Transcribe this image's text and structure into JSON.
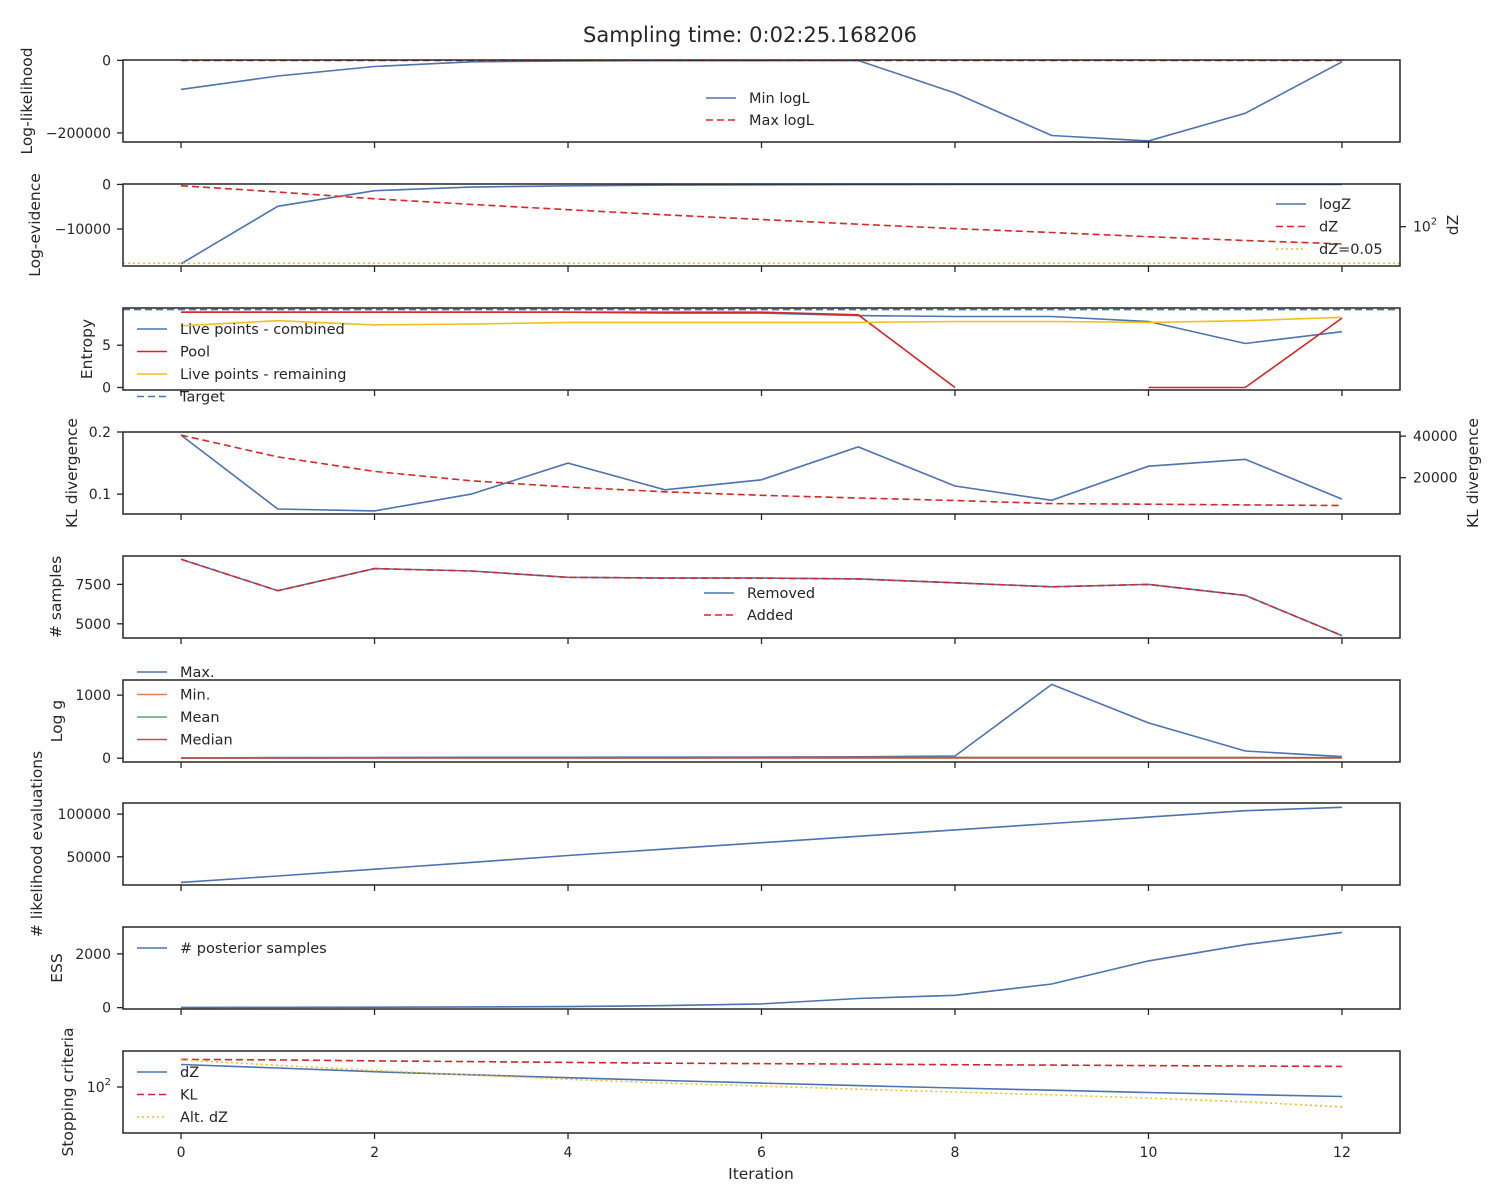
{
  "figure": {
    "title": "Sampling time: 0:02:25.168206",
    "xlabel": "Iteration",
    "x_ticks": [
      0,
      2,
      4,
      6,
      8,
      10,
      12
    ],
    "x_range": [
      -0.6,
      12.6
    ]
  },
  "colors": {
    "blue": "#4c72b0",
    "red": "#d62728",
    "yellow": "#f2c01b",
    "orange": "#dd8452",
    "green": "#55a868",
    "crimson": "#c44e52",
    "axis": "#262626"
  },
  "chart_data": [
    {
      "type": "line",
      "ylabel": "Log-likelihood",
      "ylim": [
        -225000,
        1000
      ],
      "yticks": [
        0,
        -200000
      ],
      "ytick_labels": [
        "0",
        "−200000"
      ],
      "legend": "center",
      "series": [
        {
          "name": "Min logL",
          "color": "#4c72b0",
          "dash": "solid",
          "x": [
            0,
            1,
            2,
            3,
            4,
            5,
            6,
            7,
            8,
            9,
            10,
            11,
            12
          ],
          "values": [
            -80000,
            -43000,
            -17000,
            -4000,
            -1500,
            -1000,
            -800,
            -500,
            -90000,
            -207000,
            -222000,
            -146000,
            -4000
          ]
        },
        {
          "name": "Max logL",
          "color": "#d62728",
          "dash": "dashed",
          "x": [
            0,
            1,
            2,
            3,
            4,
            5,
            6,
            7,
            8,
            9,
            10,
            11,
            12
          ],
          "values": [
            0,
            0,
            0,
            0,
            0,
            0,
            0,
            0,
            0,
            0,
            0,
            0,
            0
          ]
        }
      ]
    },
    {
      "type": "line",
      "ylabel": "Log-evidence",
      "ylim": [
        -18300,
        100
      ],
      "yticks": [
        0,
        -10000
      ],
      "ytick_labels": [
        "0",
        "−10000"
      ],
      "ylabel_right": "dZ",
      "y2scale": "log",
      "y2lim": [
        11,
        1100
      ],
      "y2ticks": [
        100
      ],
      "y2tick_labels": [
        "10^2"
      ],
      "legend": "right",
      "series": [
        {
          "name": "logZ",
          "color": "#4c72b0",
          "dash": "solid",
          "axis": "left",
          "x": [
            0,
            1,
            2,
            3,
            4,
            5,
            6,
            7,
            8,
            9,
            10,
            11,
            12
          ],
          "values": [
            -17800,
            -4900,
            -1400,
            -600,
            -300,
            -150,
            -80,
            -40,
            -20,
            -10,
            -5,
            -3,
            -2
          ]
        },
        {
          "name": "dZ",
          "color": "#d62728",
          "dash": "dashed",
          "axis": "right",
          "x": [
            0,
            1,
            2,
            3,
            4,
            5,
            6,
            7,
            8,
            9,
            10,
            11,
            12
          ],
          "values": [
            1000,
            700,
            480,
            350,
            260,
            195,
            150,
            115,
            90,
            72,
            57,
            46,
            38
          ]
        },
        {
          "name": "dZ=0.05",
          "color": "#f2c01b",
          "dash": "dotted",
          "axis": "left",
          "hline": true,
          "values": [
            -17700
          ]
        }
      ]
    },
    {
      "type": "line",
      "ylabel": "Entropy",
      "ylim": [
        -0.3,
        9.4
      ],
      "yticks": [
        0,
        5
      ],
      "ytick_labels": [
        "0",
        "5"
      ],
      "legend": "lower-left",
      "series": [
        {
          "name": "Live points - combined",
          "color": "#4c72b0",
          "dash": "solid",
          "x": [
            0,
            1,
            2,
            3,
            4,
            5,
            6,
            7,
            8,
            9,
            10,
            11,
            12
          ],
          "values": [
            8.9,
            8.9,
            8.9,
            8.9,
            8.9,
            8.8,
            8.8,
            8.5,
            8.4,
            8.4,
            7.8,
            5.2,
            6.6
          ]
        },
        {
          "name": "Pool",
          "color": "#d62728",
          "dash": "solid",
          "x": [
            0,
            1,
            2,
            3,
            4,
            5,
            6,
            7,
            8,
            null,
            10,
            11,
            12
          ],
          "values": [
            8.9,
            8.9,
            8.9,
            8.9,
            8.9,
            8.9,
            8.9,
            8.6,
            0,
            null,
            0,
            0,
            8.2
          ]
        },
        {
          "name": "Live points - remaining",
          "color": "#f2c01b",
          "dash": "solid",
          "x": [
            0,
            1,
            2,
            3,
            4,
            5,
            6,
            7,
            8,
            9,
            10,
            11,
            12
          ],
          "values": [
            7.3,
            7.9,
            7.4,
            7.5,
            7.7,
            7.7,
            7.7,
            7.7,
            7.8,
            7.8,
            7.7,
            7.9,
            8.3
          ]
        },
        {
          "name": "Target",
          "color": "#4c72b0",
          "dash": "dashed",
          "hline": true,
          "values": [
            9.21
          ]
        }
      ]
    },
    {
      "type": "line",
      "ylabel": "KL divergence",
      "ylim": [
        0.068,
        0.2
      ],
      "yticks": [
        0.1,
        0.2
      ],
      "ytick_labels": [
        "0.1",
        "0.2"
      ],
      "ylabel_right": "KL divergence",
      "y2lim": [
        2500,
        42000
      ],
      "y2ticks": [
        20000,
        40000
      ],
      "y2tick_labels": [
        "20000",
        "40000"
      ],
      "legend": "none",
      "series": [
        {
          "name": "",
          "color": "#4c72b0",
          "dash": "solid",
          "axis": "left",
          "x": [
            0,
            1,
            2,
            3,
            4,
            5,
            6,
            7,
            8,
            9,
            10,
            11,
            12
          ],
          "values": [
            0.195,
            0.076,
            0.073,
            0.1,
            0.15,
            0.107,
            0.123,
            0.176,
            0.113,
            0.09,
            0.145,
            0.156,
            0.092
          ]
        },
        {
          "name": "",
          "color": "#d62728",
          "dash": "dashed",
          "axis": "right",
          "x": [
            0,
            1,
            2,
            3,
            4,
            5,
            6,
            7,
            8,
            9,
            10,
            11,
            12
          ],
          "values": [
            40500,
            30000,
            23000,
            18500,
            15500,
            13200,
            11500,
            10200,
            9000,
            7500,
            7200,
            6900,
            6600
          ]
        }
      ]
    },
    {
      "type": "line",
      "ylabel": "# samples",
      "ylim": [
        4100,
        9300
      ],
      "yticks": [
        5000,
        7500
      ],
      "ytick_labels": [
        "5000",
        "7500"
      ],
      "legend": "center",
      "series": [
        {
          "name": "Removed",
          "color": "#4c72b0",
          "dash": "solid",
          "x": [
            0,
            1,
            2,
            3,
            4,
            5,
            6,
            7,
            8,
            9,
            10,
            11,
            12
          ],
          "values": [
            9100,
            7100,
            8500,
            8350,
            7950,
            7900,
            7900,
            7850,
            7600,
            7350,
            7500,
            6800,
            4250
          ]
        },
        {
          "name": "Added",
          "color": "#d62728",
          "dash": "dashed",
          "x": [
            0,
            1,
            2,
            3,
            4,
            5,
            6,
            7,
            8,
            9,
            10,
            11,
            12
          ],
          "values": [
            9100,
            7100,
            8500,
            8350,
            7950,
            7900,
            7900,
            7850,
            7600,
            7350,
            7500,
            6800,
            4250
          ]
        }
      ]
    },
    {
      "type": "line",
      "ylabel": "Log g",
      "ylim": [
        -60,
        1240
      ],
      "yticks": [
        0,
        1000
      ],
      "ytick_labels": [
        "0",
        "1000"
      ],
      "legend": "upper-left",
      "series": [
        {
          "name": "Max.",
          "color": "#4c72b0",
          "dash": "solid",
          "x": [
            0,
            1,
            2,
            3,
            4,
            5,
            6,
            7,
            8,
            9,
            10,
            11,
            12
          ],
          "values": [
            5,
            10,
            12,
            14,
            15,
            16,
            18,
            22,
            35,
            1170,
            560,
            115,
            25
          ]
        },
        {
          "name": "Min.",
          "color": "#dd8452",
          "dash": "solid",
          "x": [
            0,
            1,
            2,
            3,
            4,
            5,
            6,
            7,
            8,
            9,
            10,
            11,
            12
          ],
          "values": [
            1,
            2,
            2,
            2,
            2,
            2,
            2,
            2,
            2,
            2,
            2,
            2,
            2
          ]
        },
        {
          "name": "Mean",
          "color": "#55a868",
          "dash": "solid",
          "x": [
            0,
            1,
            2,
            3,
            4,
            5,
            6,
            7,
            8,
            9,
            10,
            11,
            12
          ],
          "values": [
            3,
            5,
            6,
            6,
            7,
            7,
            8,
            9,
            10,
            10,
            10,
            9,
            8
          ]
        },
        {
          "name": "Median",
          "color": "#c44e52",
          "dash": "solid",
          "x": [
            0,
            1,
            2,
            3,
            4,
            5,
            6,
            7,
            8,
            9,
            10,
            11,
            12
          ],
          "values": [
            3,
            5,
            6,
            6,
            7,
            7,
            8,
            9,
            10,
            10,
            10,
            9,
            8
          ]
        }
      ]
    },
    {
      "type": "line",
      "ylabel": "# likelihood evaluations",
      "ylim": [
        17000,
        113000
      ],
      "yticks": [
        50000,
        100000
      ],
      "ytick_labels": [
        "50000",
        "100000"
      ],
      "legend": "none",
      "series": [
        {
          "name": "",
          "color": "#4c72b0",
          "dash": "solid",
          "x": [
            0,
            1,
            2,
            3,
            4,
            5,
            6,
            7,
            8,
            9,
            10,
            11,
            12
          ],
          "values": [
            20000,
            27500,
            35500,
            43500,
            51500,
            59000,
            66500,
            74000,
            81500,
            89000,
            96500,
            104000,
            108000
          ]
        }
      ]
    },
    {
      "type": "line",
      "ylabel": "ESS",
      "ylim": [
        -50,
        3000
      ],
      "yticks": [
        0,
        2000
      ],
      "ytick_labels": [
        "0",
        "2000"
      ],
      "legend": "upper-left",
      "series": [
        {
          "name": "# posterior samples",
          "color": "#4c72b0",
          "dash": "solid",
          "x": [
            0,
            1,
            2,
            3,
            4,
            5,
            6,
            7,
            8,
            9,
            10,
            11,
            12
          ],
          "values": [
            10,
            12,
            18,
            28,
            40,
            75,
            140,
            340,
            460,
            880,
            1740,
            2340,
            2800
          ]
        }
      ]
    },
    {
      "type": "line",
      "ylabel": "Stopping criteria",
      "yscale": "log",
      "ylim": [
        0.9,
        4000
      ],
      "yticks": [
        100
      ],
      "ytick_labels": [
        "10^2"
      ],
      "legend": "left",
      "series": [
        {
          "name": "dZ",
          "color": "#4c72b0",
          "dash": "solid",
          "x": [
            0,
            1,
            2,
            3,
            4,
            5,
            6,
            7,
            8,
            9,
            10,
            11,
            12
          ],
          "values": [
            1000,
            700,
            480,
            350,
            260,
            195,
            150,
            115,
            90,
            72,
            57,
            46,
            38
          ]
        },
        {
          "name": "KL",
          "color": "#d62728",
          "dash": "dashed",
          "x": [
            0,
            1,
            2,
            3,
            4,
            5,
            6,
            7,
            8,
            9,
            10,
            11,
            12
          ],
          "values": [
            1700,
            1600,
            1450,
            1350,
            1250,
            1150,
            1100,
            1050,
            980,
            940,
            900,
            860,
            830
          ]
        },
        {
          "name": "Alt. dZ",
          "color": "#f2c01b",
          "dash": "dotted",
          "x": [
            0,
            1,
            2,
            3,
            4,
            5,
            6,
            7,
            8,
            9,
            10,
            11,
            12
          ],
          "values": [
            1600,
            920,
            550,
            340,
            220,
            150,
            110,
            80,
            60,
            45,
            32,
            22,
            13
          ]
        }
      ]
    }
  ]
}
